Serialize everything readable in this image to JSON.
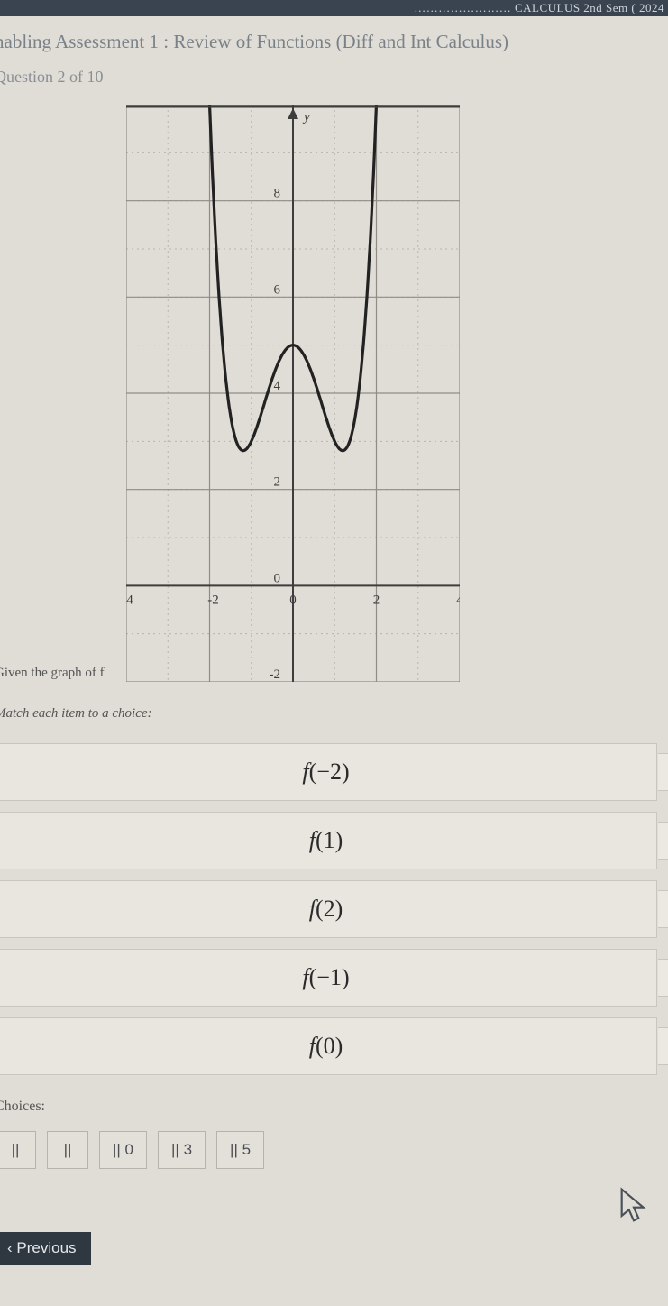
{
  "topbar": {
    "text": "…………………… CALCULUS 2nd Sem ( 2024"
  },
  "breadcrumb": "nabling Assessment 1 : Review of Functions (Diff and Int Calculus)",
  "question_counter": "Question 2 of 10",
  "given_text": "Given the graph of f",
  "instruction": "Match each item to a choice:",
  "chart": {
    "type": "function-curve",
    "background_color": "#e0dcd6",
    "axis_color": "#3d3d3d",
    "major_grid_color": "#8f8c86",
    "minor_grid_color": "#b8b4ad",
    "curve_color": "#222222",
    "curve_width": 3.2,
    "xlim": [
      -4,
      4
    ],
    "ylim": [
      -2,
      10
    ],
    "x_major_step": 2,
    "y_major_step": 2,
    "x_minor": true,
    "y_minor": true,
    "y_label": "y",
    "y_tick_labels": [
      -2,
      0,
      2,
      4,
      6,
      8
    ],
    "x_tick_labels": [
      -4,
      -2,
      0,
      2,
      4
    ],
    "x_axis_y": 0,
    "critical_points": [
      {
        "x": -2,
        "y": 10
      },
      {
        "x": -1,
        "y": 3
      },
      {
        "x": 0,
        "y": 5
      },
      {
        "x": 1,
        "y": 3
      },
      {
        "x": 2,
        "y": 10
      }
    ],
    "label_fontsize": 15
  },
  "items": [
    {
      "label": "f(−2)"
    },
    {
      "label": "f(1)"
    },
    {
      "label": "f(2)"
    },
    {
      "label": "f(−1)"
    },
    {
      "label": "f(0)"
    }
  ],
  "choices_label": "Choices:",
  "choices": [
    {
      "label": "||"
    },
    {
      "label": "||"
    },
    {
      "label": "||  0"
    },
    {
      "label": "||  3"
    },
    {
      "label": "||  5"
    }
  ],
  "prev_button_label": "‹  Previous"
}
